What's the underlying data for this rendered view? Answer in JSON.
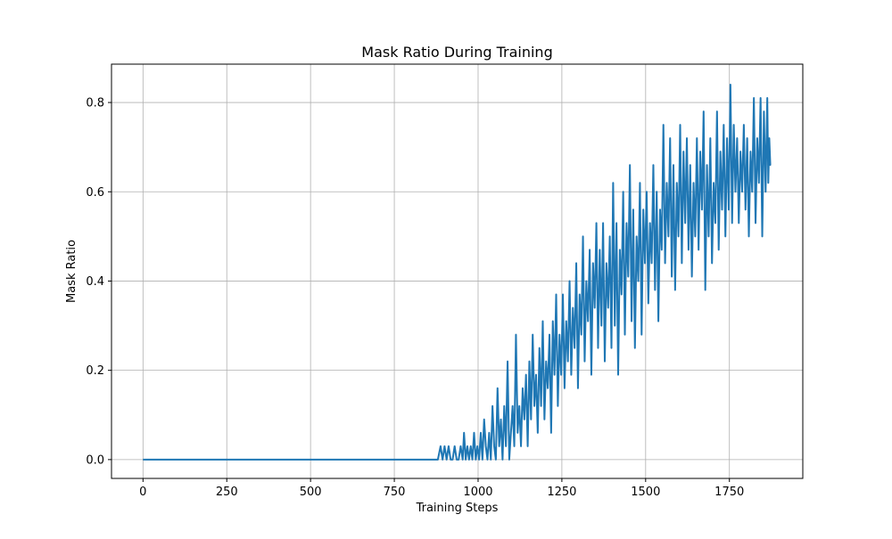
{
  "chart_data": {
    "type": "line",
    "title": "Mask Ratio During Training",
    "xlabel": "Training Steps",
    "ylabel": "Mask Ratio",
    "xlim": [
      -94,
      1969
    ],
    "ylim": [
      -0.0421875,
      0.8859375
    ],
    "xticks": [
      0,
      250,
      500,
      750,
      1000,
      1250,
      1500,
      1750
    ],
    "xtick_labels": [
      "0",
      "250",
      "500",
      "750",
      "1000",
      "1250",
      "1500",
      "1750"
    ],
    "yticks": [
      0.0,
      0.2,
      0.4,
      0.6,
      0.8
    ],
    "ytick_labels": [
      "0.0",
      "0.2",
      "0.4",
      "0.6",
      "0.8"
    ],
    "grid": true,
    "line_color": "#1f77b4",
    "x_start": 0,
    "x_end": 1874,
    "series": [
      {
        "name": "",
        "points": [
          [
            0,
            0.0
          ],
          [
            100,
            0.0
          ],
          [
            200,
            0.0
          ],
          [
            300,
            0.0
          ],
          [
            400,
            0.0
          ],
          [
            500,
            0.0
          ],
          [
            600,
            0.0
          ],
          [
            700,
            0.0
          ],
          [
            800,
            0.0
          ],
          [
            880,
            0.0
          ],
          [
            888,
            0.03
          ],
          [
            894,
            0.0
          ],
          [
            900,
            0.03
          ],
          [
            906,
            0.0
          ],
          [
            912,
            0.03
          ],
          [
            918,
            0.0
          ],
          [
            924,
            0.0
          ],
          [
            930,
            0.03
          ],
          [
            936,
            0.0
          ],
          [
            942,
            0.0
          ],
          [
            948,
            0.03
          ],
          [
            954,
            0.0
          ],
          [
            958,
            0.06
          ],
          [
            963,
            0.0
          ],
          [
            968,
            0.03
          ],
          [
            973,
            0.0
          ],
          [
            978,
            0.03
          ],
          [
            983,
            0.0
          ],
          [
            988,
            0.06
          ],
          [
            993,
            0.0
          ],
          [
            998,
            0.03
          ],
          [
            1003,
            0.0
          ],
          [
            1008,
            0.06
          ],
          [
            1013,
            0.0
          ],
          [
            1018,
            0.09
          ],
          [
            1023,
            0.03
          ],
          [
            1028,
            0.0
          ],
          [
            1033,
            0.06
          ],
          [
            1038,
            0.0
          ],
          [
            1043,
            0.12
          ],
          [
            1048,
            0.03
          ],
          [
            1053,
            0.0
          ],
          [
            1058,
            0.16
          ],
          [
            1063,
            0.03
          ],
          [
            1068,
            0.09
          ],
          [
            1073,
            0.0
          ],
          [
            1078,
            0.12
          ],
          [
            1083,
            0.03
          ],
          [
            1088,
            0.22
          ],
          [
            1093,
            0.0
          ],
          [
            1098,
            0.06
          ],
          [
            1103,
            0.12
          ],
          [
            1108,
            0.03
          ],
          [
            1113,
            0.28
          ],
          [
            1118,
            0.06
          ],
          [
            1123,
            0.12
          ],
          [
            1128,
            0.03
          ],
          [
            1133,
            0.16
          ],
          [
            1138,
            0.09
          ],
          [
            1143,
            0.19
          ],
          [
            1148,
            0.03
          ],
          [
            1153,
            0.22
          ],
          [
            1158,
            0.09
          ],
          [
            1163,
            0.28
          ],
          [
            1168,
            0.12
          ],
          [
            1173,
            0.19
          ],
          [
            1178,
            0.06
          ],
          [
            1183,
            0.25
          ],
          [
            1188,
            0.12
          ],
          [
            1193,
            0.31
          ],
          [
            1198,
            0.09
          ],
          [
            1203,
            0.22
          ],
          [
            1208,
            0.16
          ],
          [
            1213,
            0.28
          ],
          [
            1218,
            0.06
          ],
          [
            1223,
            0.31
          ],
          [
            1228,
            0.19
          ],
          [
            1233,
            0.37
          ],
          [
            1238,
            0.12
          ],
          [
            1243,
            0.28
          ],
          [
            1248,
            0.19
          ],
          [
            1253,
            0.37
          ],
          [
            1258,
            0.16
          ],
          [
            1263,
            0.31
          ],
          [
            1268,
            0.22
          ],
          [
            1273,
            0.4
          ],
          [
            1278,
            0.19
          ],
          [
            1283,
            0.34
          ],
          [
            1288,
            0.25
          ],
          [
            1293,
            0.44
          ],
          [
            1298,
            0.16
          ],
          [
            1303,
            0.37
          ],
          [
            1308,
            0.28
          ],
          [
            1313,
            0.5
          ],
          [
            1318,
            0.22
          ],
          [
            1323,
            0.4
          ],
          [
            1328,
            0.31
          ],
          [
            1333,
            0.47
          ],
          [
            1338,
            0.19
          ],
          [
            1343,
            0.44
          ],
          [
            1348,
            0.34
          ],
          [
            1353,
            0.53
          ],
          [
            1358,
            0.25
          ],
          [
            1363,
            0.47
          ],
          [
            1368,
            0.3
          ],
          [
            1373,
            0.53
          ],
          [
            1378,
            0.22
          ],
          [
            1383,
            0.44
          ],
          [
            1388,
            0.34
          ],
          [
            1393,
            0.5
          ],
          [
            1398,
            0.25
          ],
          [
            1403,
            0.62
          ],
          [
            1408,
            0.3
          ],
          [
            1413,
            0.53
          ],
          [
            1418,
            0.19
          ],
          [
            1423,
            0.47
          ],
          [
            1428,
            0.37
          ],
          [
            1433,
            0.6
          ],
          [
            1438,
            0.28
          ],
          [
            1443,
            0.53
          ],
          [
            1448,
            0.41
          ],
          [
            1453,
            0.66
          ],
          [
            1458,
            0.31
          ],
          [
            1463,
            0.56
          ],
          [
            1468,
            0.25
          ],
          [
            1473,
            0.5
          ],
          [
            1478,
            0.4
          ],
          [
            1483,
            0.62
          ],
          [
            1488,
            0.28
          ],
          [
            1493,
            0.56
          ],
          [
            1498,
            0.44
          ],
          [
            1503,
            0.6
          ],
          [
            1508,
            0.35
          ],
          [
            1513,
            0.53
          ],
          [
            1518,
            0.44
          ],
          [
            1523,
            0.66
          ],
          [
            1528,
            0.38
          ],
          [
            1533,
            0.6
          ],
          [
            1538,
            0.31
          ],
          [
            1543,
            0.56
          ],
          [
            1548,
            0.47
          ],
          [
            1553,
            0.75
          ],
          [
            1558,
            0.44
          ],
          [
            1563,
            0.62
          ],
          [
            1568,
            0.5
          ],
          [
            1573,
            0.72
          ],
          [
            1578,
            0.41
          ],
          [
            1583,
            0.66
          ],
          [
            1588,
            0.38
          ],
          [
            1593,
            0.62
          ],
          [
            1598,
            0.5
          ],
          [
            1603,
            0.75
          ],
          [
            1608,
            0.44
          ],
          [
            1613,
            0.69
          ],
          [
            1618,
            0.53
          ],
          [
            1623,
            0.72
          ],
          [
            1628,
            0.47
          ],
          [
            1633,
            0.66
          ],
          [
            1638,
            0.41
          ],
          [
            1643,
            0.62
          ],
          [
            1648,
            0.5
          ],
          [
            1653,
            0.72
          ],
          [
            1658,
            0.47
          ],
          [
            1663,
            0.69
          ],
          [
            1668,
            0.56
          ],
          [
            1673,
            0.78
          ],
          [
            1678,
            0.38
          ],
          [
            1683,
            0.66
          ],
          [
            1688,
            0.5
          ],
          [
            1693,
            0.72
          ],
          [
            1698,
            0.44
          ],
          [
            1703,
            0.62
          ],
          [
            1708,
            0.53
          ],
          [
            1713,
            0.78
          ],
          [
            1718,
            0.47
          ],
          [
            1723,
            0.69
          ],
          [
            1728,
            0.56
          ],
          [
            1733,
            0.75
          ],
          [
            1738,
            0.5
          ],
          [
            1743,
            0.72
          ],
          [
            1748,
            0.56
          ],
          [
            1753,
            0.84
          ],
          [
            1758,
            0.53
          ],
          [
            1763,
            0.75
          ],
          [
            1768,
            0.6
          ],
          [
            1773,
            0.72
          ],
          [
            1778,
            0.53
          ],
          [
            1783,
            0.69
          ],
          [
            1788,
            0.6
          ],
          [
            1793,
            0.75
          ],
          [
            1798,
            0.56
          ],
          [
            1803,
            0.72
          ],
          [
            1808,
            0.5
          ],
          [
            1813,
            0.69
          ],
          [
            1818,
            0.6
          ],
          [
            1823,
            0.81
          ],
          [
            1828,
            0.53
          ],
          [
            1833,
            0.72
          ],
          [
            1838,
            0.62
          ],
          [
            1843,
            0.81
          ],
          [
            1848,
            0.5
          ],
          [
            1853,
            0.78
          ],
          [
            1858,
            0.6
          ],
          [
            1863,
            0.81
          ],
          [
            1866,
            0.62
          ],
          [
            1869,
            0.72
          ],
          [
            1872,
            0.66
          ],
          [
            1874,
            0.66
          ]
        ]
      }
    ]
  }
}
